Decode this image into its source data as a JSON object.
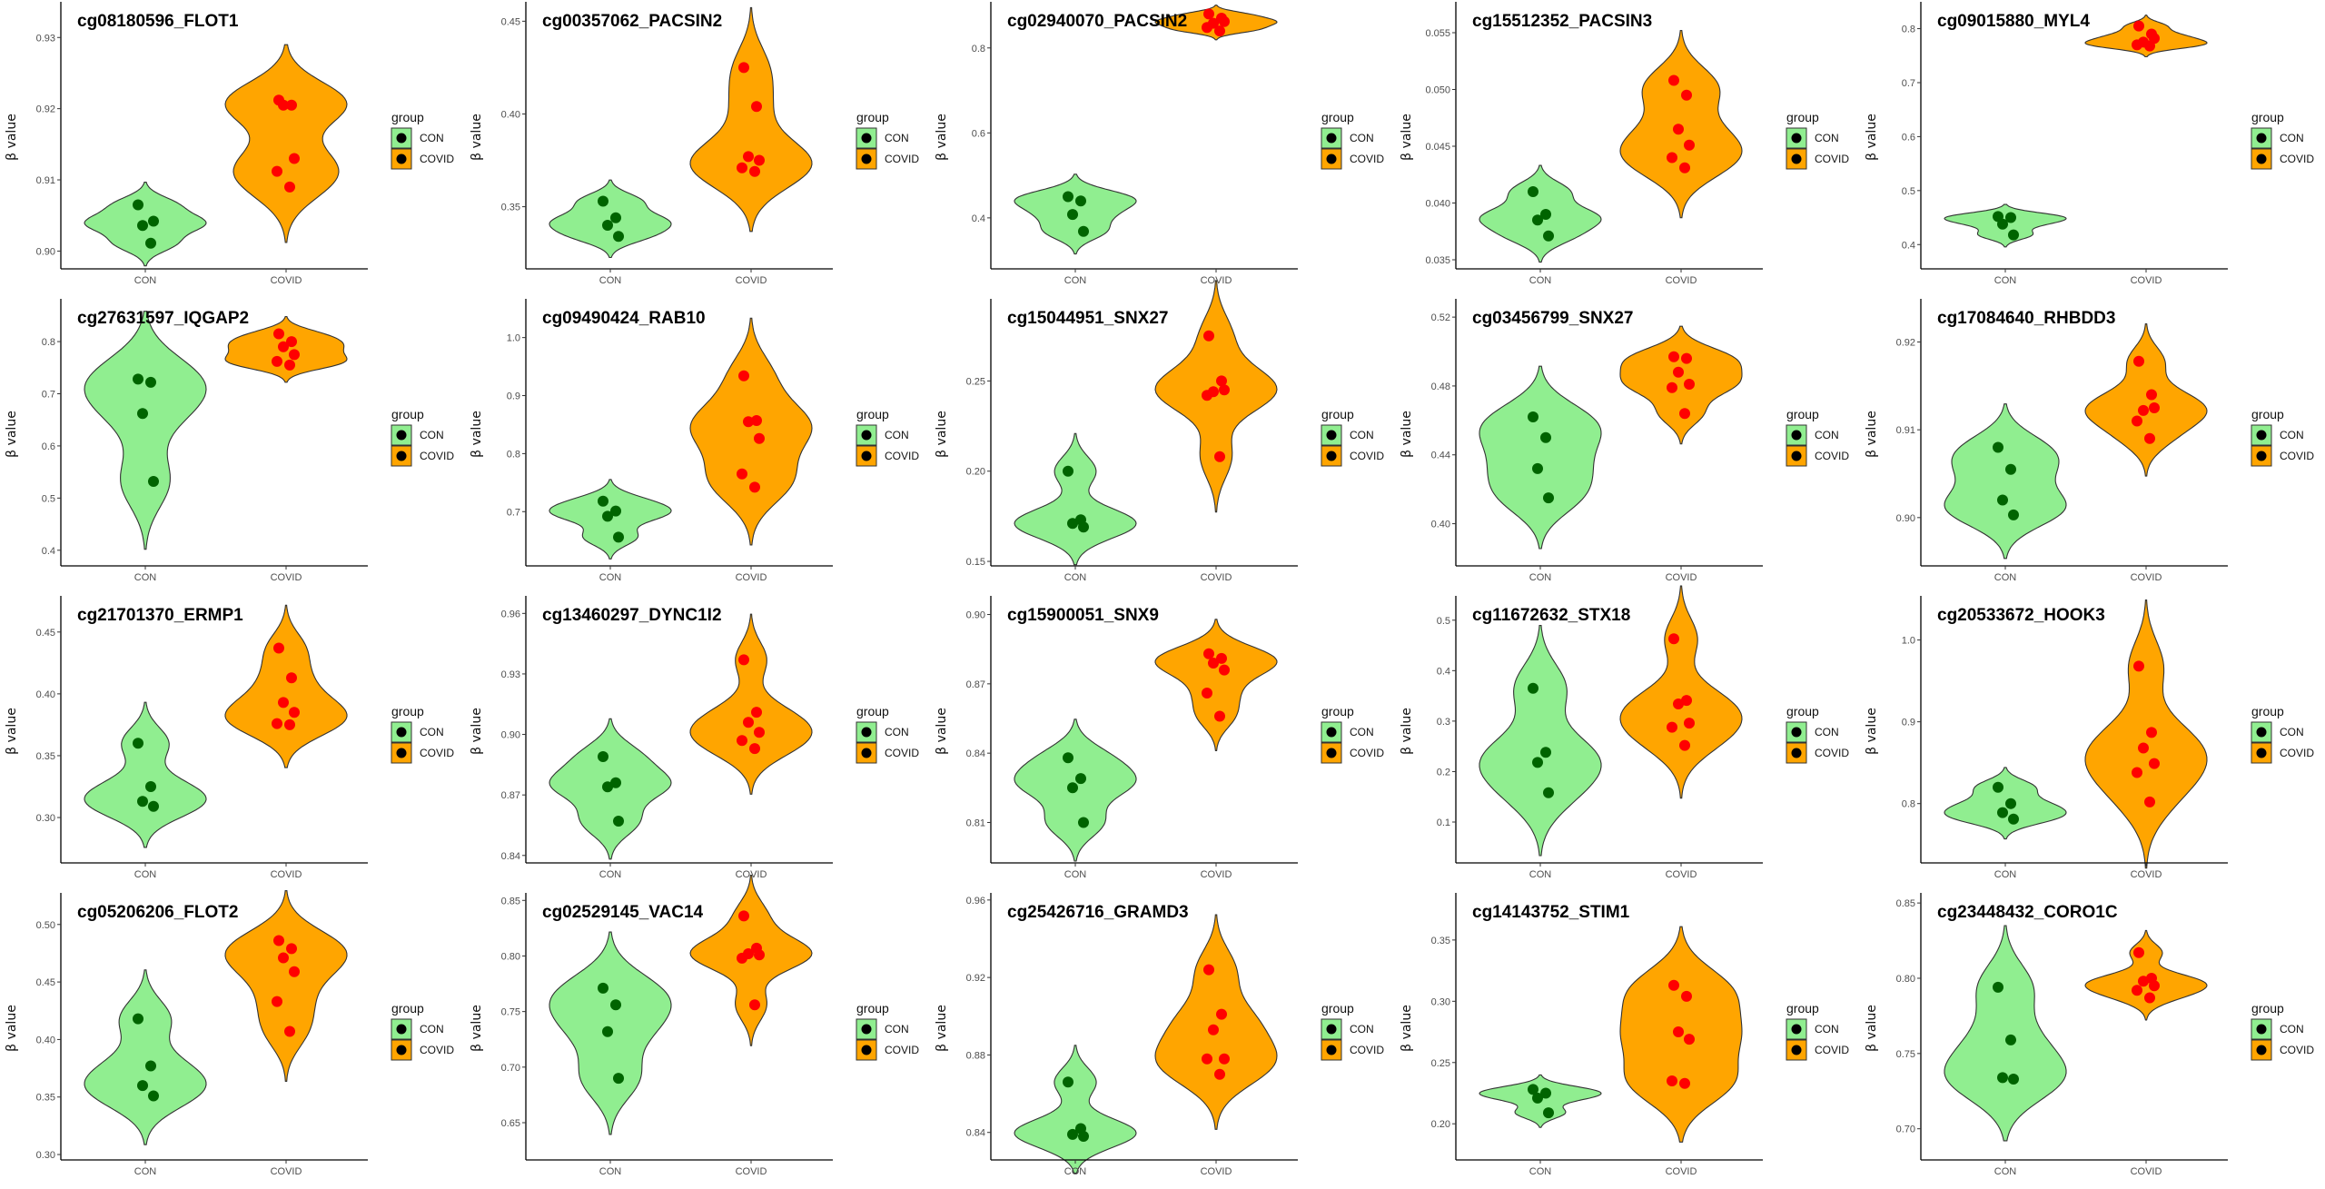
{
  "chart_data": [
    {
      "type": "violin",
      "title": "cg08180596_FLOT1",
      "ylabel": "β value",
      "categories": [
        "CON",
        "COVID"
      ],
      "yticks": [
        "0.90",
        "0.91",
        "0.92",
        "0.93"
      ],
      "ylim": [
        0.8975,
        0.9345
      ],
      "series": [
        {
          "name": "CON",
          "values": [
            0.9065,
            0.9011,
            0.9036,
            0.9042
          ]
        },
        {
          "name": "COVID",
          "values": [
            0.9212,
            0.9205,
            0.9205,
            0.913,
            0.9112,
            0.909
          ]
        }
      ]
    },
    {
      "type": "violin",
      "title": "cg00357062_PACSIN2",
      "ylabel": "β value",
      "categories": [
        "CON",
        "COVID"
      ],
      "yticks": [
        "0.35",
        "0.40",
        "0.45"
      ],
      "ylim": [
        0.3165,
        0.4585
      ],
      "series": [
        {
          "name": "CON",
          "values": [
            0.353,
            0.344,
            0.34,
            0.334
          ]
        },
        {
          "name": "COVID",
          "values": [
            0.425,
            0.404,
            0.377,
            0.375,
            0.371,
            0.369
          ]
        }
      ]
    },
    {
      "type": "violin",
      "title": "cg02940070_PACSIN2",
      "ylabel": "β value",
      "categories": [
        "CON",
        "COVID"
      ],
      "yticks": [
        "0.4",
        "0.6",
        "0.8"
      ],
      "ylim": [
        0.28,
        0.9
      ],
      "series": [
        {
          "name": "CON",
          "values": [
            0.45,
            0.44,
            0.408,
            0.368
          ]
        },
        {
          "name": "COVID",
          "values": [
            0.88,
            0.87,
            0.858,
            0.862,
            0.848,
            0.84
          ]
        }
      ]
    },
    {
      "type": "violin",
      "title": "cg15512352_PACSIN3",
      "ylabel": "β value",
      "categories": [
        "CON",
        "COVID"
      ],
      "yticks": [
        "0.035",
        "0.040",
        "0.045",
        "0.050",
        "0.055"
      ],
      "ylim": [
        0.0342,
        0.0574
      ],
      "series": [
        {
          "name": "CON",
          "values": [
            0.041,
            0.039,
            0.0385,
            0.0371
          ]
        },
        {
          "name": "COVID",
          "values": [
            0.0508,
            0.0495,
            0.0465,
            0.0451,
            0.044,
            0.0431
          ]
        }
      ]
    },
    {
      "type": "violin",
      "title": "cg09015880_MYL4",
      "ylabel": "β value",
      "categories": [
        "CON",
        "COVID"
      ],
      "yticks": [
        "0.4",
        "0.5",
        "0.6",
        "0.7",
        "0.8"
      ],
      "ylim": [
        0.355,
        0.843
      ],
      "series": [
        {
          "name": "CON",
          "values": [
            0.452,
            0.45,
            0.438,
            0.418
          ]
        },
        {
          "name": "COVID",
          "values": [
            0.805,
            0.79,
            0.775,
            0.782,
            0.77,
            0.768
          ]
        }
      ]
    },
    {
      "type": "violin",
      "title": "cg27631597_IQGAP2",
      "ylabel": "β value",
      "categories": [
        "CON",
        "COVID"
      ],
      "yticks": [
        "0.4",
        "0.5",
        "0.6",
        "0.7",
        "0.8"
      ],
      "ylim": [
        0.37,
        0.875
      ],
      "series": [
        {
          "name": "CON",
          "values": [
            0.728,
            0.722,
            0.662,
            0.532
          ]
        },
        {
          "name": "COVID",
          "values": [
            0.815,
            0.8,
            0.79,
            0.775,
            0.762,
            0.755
          ]
        }
      ]
    },
    {
      "type": "violin",
      "title": "cg09490424_RAB10",
      "ylabel": "β value",
      "categories": [
        "CON",
        "COVID"
      ],
      "yticks": [
        "0.7",
        "0.8",
        "0.9",
        "1.0"
      ],
      "ylim": [
        0.6065,
        1.0605
      ],
      "series": [
        {
          "name": "CON",
          "values": [
            0.718,
            0.701,
            0.692,
            0.656
          ]
        },
        {
          "name": "COVID",
          "values": [
            0.934,
            0.857,
            0.855,
            0.826,
            0.765,
            0.742
          ]
        }
      ]
    },
    {
      "type": "violin",
      "title": "cg15044951_SNX27",
      "ylabel": "β value",
      "categories": [
        "CON",
        "COVID"
      ],
      "yticks": [
        "0.15",
        "0.20",
        "0.25"
      ],
      "ylim": [
        0.1475,
        0.2935
      ],
      "series": [
        {
          "name": "CON",
          "values": [
            0.2,
            0.173,
            0.171,
            0.169
          ]
        },
        {
          "name": "COVID",
          "values": [
            0.275,
            0.25,
            0.244,
            0.245,
            0.242,
            0.208
          ]
        }
      ]
    },
    {
      "type": "violin",
      "title": "cg03456799_SNX27",
      "ylabel": "β value",
      "categories": [
        "CON",
        "COVID"
      ],
      "yticks": [
        "0.40",
        "0.44",
        "0.48",
        "0.52"
      ],
      "ylim": [
        0.3755,
        0.5285
      ],
      "series": [
        {
          "name": "CON",
          "values": [
            0.462,
            0.45,
            0.432,
            0.415
          ]
        },
        {
          "name": "COVID",
          "values": [
            0.497,
            0.496,
            0.488,
            0.481,
            0.479,
            0.464
          ]
        }
      ]
    },
    {
      "type": "violin",
      "title": "cg17084640_RHBDD3",
      "ylabel": "β value",
      "categories": [
        "CON",
        "COVID"
      ],
      "yticks": [
        "0.90",
        "0.91",
        "0.92"
      ],
      "ylim": [
        0.8945,
        0.9245
      ],
      "series": [
        {
          "name": "CON",
          "values": [
            0.908,
            0.9055,
            0.902,
            0.9003
          ]
        },
        {
          "name": "COVID",
          "values": [
            0.9178,
            0.914,
            0.9122,
            0.9125,
            0.911,
            0.909
          ]
        }
      ]
    },
    {
      "type": "violin",
      "title": "cg21701370_ERMP1",
      "ylabel": "β value",
      "categories": [
        "CON",
        "COVID"
      ],
      "yticks": [
        "0.30",
        "0.35",
        "0.40",
        "0.45"
      ],
      "ylim": [
        0.2633,
        0.4763
      ],
      "series": [
        {
          "name": "CON",
          "values": [
            0.36,
            0.325,
            0.313,
            0.309
          ]
        },
        {
          "name": "COVID",
          "values": [
            0.437,
            0.413,
            0.393,
            0.385,
            0.376,
            0.375
          ]
        }
      ]
    },
    {
      "type": "violin",
      "title": "cg13460297_DYNC1I2",
      "ylabel": "β value",
      "categories": [
        "CON",
        "COVID"
      ],
      "yticks": [
        "0.84",
        "0.87",
        "0.90",
        "0.93",
        "0.96"
      ],
      "ylim": [
        0.8363,
        0.9669
      ],
      "series": [
        {
          "name": "CON",
          "values": [
            0.889,
            0.876,
            0.874,
            0.857
          ]
        },
        {
          "name": "COVID",
          "values": [
            0.937,
            0.911,
            0.906,
            0.901,
            0.897,
            0.893
          ]
        }
      ]
    },
    {
      "type": "violin",
      "title": "cg15900051_SNX9",
      "ylabel": "β value",
      "categories": [
        "CON",
        "COVID"
      ],
      "yticks": [
        "0.81",
        "0.84",
        "0.87",
        "0.90"
      ],
      "ylim": [
        0.7925,
        0.9065
      ],
      "series": [
        {
          "name": "CON",
          "values": [
            0.838,
            0.829,
            0.825,
            0.81
          ]
        },
        {
          "name": "COVID",
          "values": [
            0.883,
            0.881,
            0.879,
            0.876,
            0.866,
            0.856
          ]
        }
      ]
    },
    {
      "type": "violin",
      "title": "cg11672632_STX18",
      "ylabel": "β value",
      "categories": [
        "CON",
        "COVID"
      ],
      "yticks": [
        "0.1",
        "0.2",
        "0.3",
        "0.4",
        "0.5"
      ],
      "ylim": [
        0.019,
        0.541
      ],
      "series": [
        {
          "name": "CON",
          "values": [
            0.365,
            0.238,
            0.218,
            0.158
          ]
        },
        {
          "name": "COVID",
          "values": [
            0.463,
            0.341,
            0.334,
            0.296,
            0.288,
            0.252
          ]
        }
      ]
    },
    {
      "type": "violin",
      "title": "cg20533672_HOOK3",
      "ylabel": "β value",
      "categories": [
        "CON",
        "COVID"
      ],
      "yticks": [
        "0.8",
        "0.9",
        "1.0"
      ],
      "ylim": [
        0.7275,
        1.0495
      ],
      "series": [
        {
          "name": "CON",
          "values": [
            0.82,
            0.8,
            0.789,
            0.781
          ]
        },
        {
          "name": "COVID",
          "values": [
            0.968,
            0.887,
            0.868,
            0.849,
            0.838,
            0.802
          ]
        }
      ]
    },
    {
      "type": "violin",
      "title": "cg05206206_FLOT2",
      "ylabel": "β value",
      "categories": [
        "CON",
        "COVID"
      ],
      "yticks": [
        "0.30",
        "0.35",
        "0.40",
        "0.45",
        "0.50"
      ],
      "ylim": [
        0.2953,
        0.5243
      ],
      "series": [
        {
          "name": "CON",
          "values": [
            0.418,
            0.377,
            0.36,
            0.351
          ]
        },
        {
          "name": "COVID",
          "values": [
            0.486,
            0.479,
            0.471,
            0.459,
            0.433,
            0.407
          ]
        }
      ]
    },
    {
      "type": "violin",
      "title": "cg02529145_VAC14",
      "ylabel": "β value",
      "categories": [
        "CON",
        "COVID"
      ],
      "yticks": [
        "0.65",
        "0.70",
        "0.75",
        "0.80",
        "0.85"
      ],
      "ylim": [
        0.6165,
        0.8535
      ],
      "series": [
        {
          "name": "CON",
          "values": [
            0.771,
            0.756,
            0.732,
            0.69
          ]
        },
        {
          "name": "COVID",
          "values": [
            0.836,
            0.807,
            0.802,
            0.801,
            0.798,
            0.756
          ]
        }
      ]
    },
    {
      "type": "violin",
      "title": "cg25426716_GRAMD3",
      "ylabel": "β value",
      "categories": [
        "CON",
        "COVID"
      ],
      "yticks": [
        "0.84",
        "0.88",
        "0.92",
        "0.96"
      ],
      "ylim": [
        0.8258,
        0.9618
      ],
      "series": [
        {
          "name": "CON",
          "values": [
            0.866,
            0.842,
            0.839,
            0.838
          ]
        },
        {
          "name": "COVID",
          "values": [
            0.924,
            0.901,
            0.893,
            0.878,
            0.878,
            0.87
          ]
        }
      ]
    },
    {
      "type": "violin",
      "title": "cg14143752_STIM1",
      "ylabel": "β value",
      "categories": [
        "CON",
        "COVID"
      ],
      "yticks": [
        "0.20",
        "0.25",
        "0.30",
        "0.35"
      ],
      "ylim": [
        0.1705,
        0.3855
      ],
      "series": [
        {
          "name": "CON",
          "values": [
            0.228,
            0.225,
            0.221,
            0.209
          ]
        },
        {
          "name": "COVID",
          "values": [
            0.313,
            0.304,
            0.275,
            0.269,
            0.235,
            0.233
          ]
        }
      ]
    },
    {
      "type": "violin",
      "title": "cg23448432_CORO1C",
      "ylabel": "β value",
      "categories": [
        "CON",
        "COVID"
      ],
      "yticks": [
        "0.70",
        "0.75",
        "0.80",
        "0.85"
      ],
      "ylim": [
        0.6793,
        0.8543
      ],
      "series": [
        {
          "name": "CON",
          "values": [
            0.794,
            0.759,
            0.734,
            0.733
          ]
        },
        {
          "name": "COVID",
          "values": [
            0.817,
            0.8,
            0.798,
            0.795,
            0.792,
            0.787
          ]
        }
      ]
    }
  ],
  "legend": {
    "title": "group",
    "items": [
      "CON",
      "COVID"
    ]
  },
  "colors": {
    "con_fill": "#90EE90",
    "covid_fill": "#FFA500",
    "con_point": "#006400",
    "covid_point": "#FF0000"
  }
}
